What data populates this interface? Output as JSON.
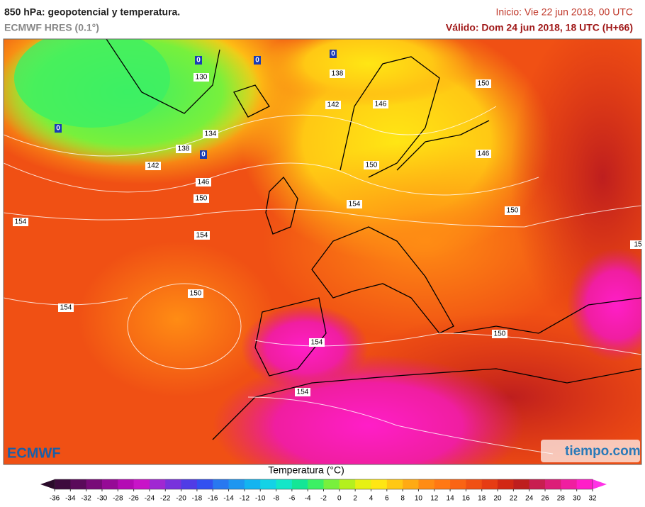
{
  "header": {
    "title": "850 hPa: geopotencial y temperatura.",
    "model": "ECMWF HRES (0.1°)",
    "start": "Inicio: Vie 22 jun 2018, 00 UTC",
    "valid": "Válido: Dom 24 jun 2018, 18 UTC (H+66)"
  },
  "map": {
    "contour_labels": [
      130,
      138,
      142,
      146,
      150,
      134,
      138,
      142,
      146,
      150,
      150,
      146,
      154,
      150,
      154,
      154,
      150,
      154,
      154,
      150,
      154,
      15
    ],
    "freezing_labels": [
      0,
      0,
      0,
      0,
      0
    ]
  },
  "legend": {
    "title": "Temperatura (°C)",
    "ticks": [
      -36,
      -34,
      -32,
      -30,
      -28,
      -26,
      -24,
      -22,
      -20,
      -18,
      -16,
      -14,
      -12,
      -10,
      -8,
      -6,
      -4,
      -2,
      0,
      2,
      4,
      6,
      8,
      10,
      12,
      14,
      16,
      18,
      20,
      22,
      24,
      26,
      28,
      30,
      32
    ],
    "colors": [
      "#2a0a2a",
      "#3d0a3d",
      "#5a0a5a",
      "#780a78",
      "#960a96",
      "#b40ab4",
      "#c814c8",
      "#a028d2",
      "#7832dc",
      "#503ce6",
      "#3250f0",
      "#2878f0",
      "#1e96f0",
      "#14b4f0",
      "#14d2e6",
      "#14e6c8",
      "#14e696",
      "#3cf064",
      "#78f03c",
      "#b4f01e",
      "#e6f014",
      "#ffe614",
      "#ffc814",
      "#ffaa14",
      "#ff8c14",
      "#ff7814",
      "#fa6414",
      "#f05014",
      "#e63c14",
      "#d22814",
      "#be1e1e",
      "#c81e50",
      "#dc1e78",
      "#f01ea0",
      "#ff1ec8",
      "#ff32e6"
    ]
  },
  "logos": {
    "left": "ECMWF",
    "right": "tiempo.com"
  }
}
